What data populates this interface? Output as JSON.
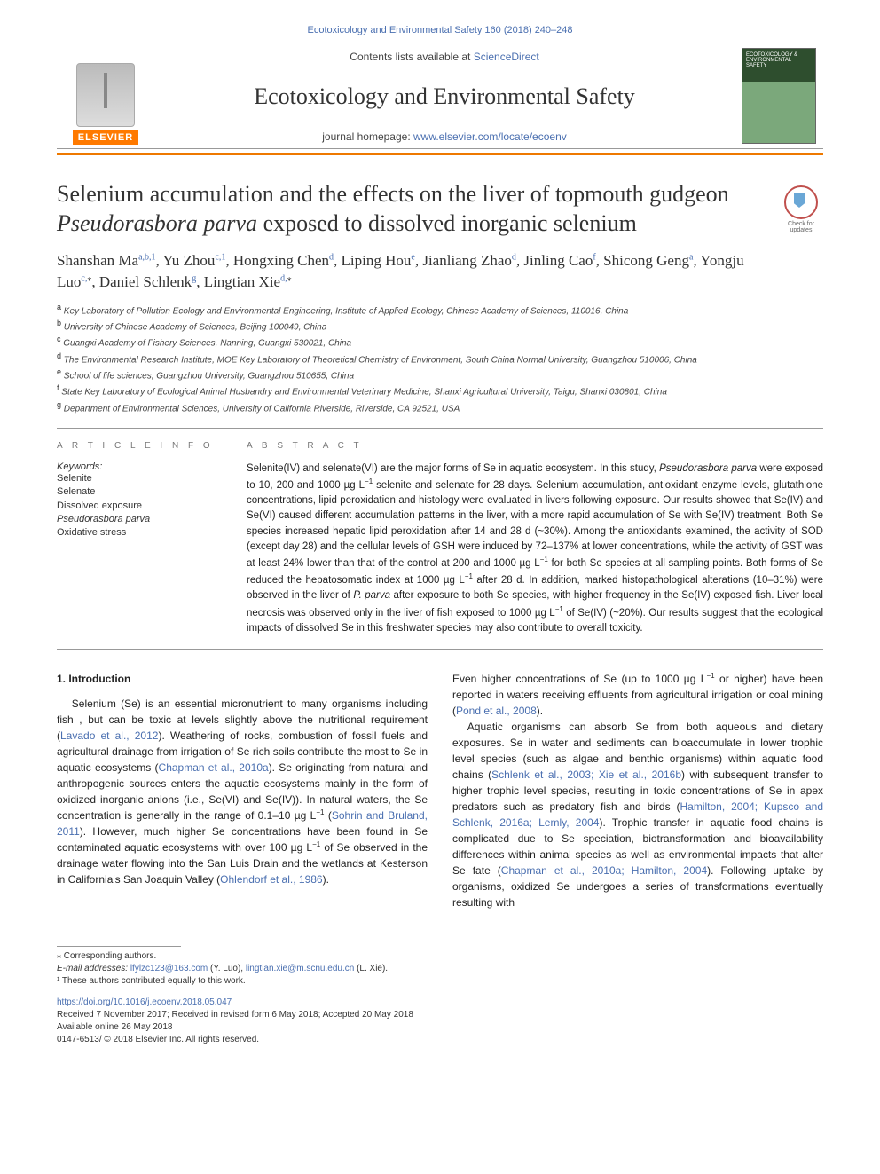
{
  "header": {
    "top_citation": "Ecotoxicology and Environmental Safety 160 (2018) 240–248",
    "contents_line_pre": "Contents lists available at ",
    "contents_line_link": "ScienceDirect",
    "journal_name": "Ecotoxicology and Environmental Safety",
    "homepage_pre": "journal homepage: ",
    "homepage_link": "www.elsevier.com/locate/ecoenv",
    "publisher_label": "ELSEVIER",
    "cover_text": "ECOTOXICOLOGY & ENVIRONMENTAL SAFETY",
    "check_updates": "Check for updates"
  },
  "colors": {
    "rule": "#ee7900",
    "link": "#4a6fb0",
    "publisher_bg": "#ff7a00"
  },
  "article": {
    "title_plain_pre": "Selenium accumulation and the effects on the liver of topmouth gudgeon ",
    "title_ital": "Pseudorasbora parva",
    "title_plain_post": " exposed to dissolved inorganic selenium",
    "authors_html": "Shanshan Ma<sup>a,b,1</sup>, Yu Zhou<sup>c,1</sup>, Hongxing Chen<sup>d</sup>, Liping Hou<sup>e</sup>, Jianliang Zhao<sup>d</sup>, Jinling Cao<sup>f</sup>, Shicong Geng<sup>a</sup>, Yongju Luo<sup>c,</sup><sup class=\"black\">⁎</sup>, Daniel Schlenk<sup>g</sup>, Lingtian Xie<sup>d,</sup><sup class=\"black\">⁎</sup>",
    "affiliations": [
      {
        "key": "a",
        "text": "Key Laboratory of Pollution Ecology and Environmental Engineering, Institute of Applied Ecology, Chinese Academy of Sciences, 110016, China"
      },
      {
        "key": "b",
        "text": "University of Chinese Academy of Sciences, Beijing 100049, China"
      },
      {
        "key": "c",
        "text": "Guangxi Academy of Fishery Sciences, Nanning, Guangxi 530021, China"
      },
      {
        "key": "d",
        "text": "The Environmental Research Institute, MOE Key Laboratory of Theoretical Chemistry of Environment, South China Normal University, Guangzhou 510006, China"
      },
      {
        "key": "e",
        "text": "School of life sciences, Guangzhou University, Guangzhou 510655, China"
      },
      {
        "key": "f",
        "text": "State Key Laboratory of Ecological Animal Husbandry and Environmental Veterinary Medicine, Shanxi Agricultural University, Taigu, Shanxi 030801, China"
      },
      {
        "key": "g",
        "text": "Department of Environmental Sciences, University of California Riverside, Riverside, CA 92521, USA"
      }
    ]
  },
  "article_info": {
    "head": "A R T I C L E  I N F O",
    "kw_label": "Keywords:",
    "keywords": [
      "Selenite",
      "Selenate",
      "Dissolved exposure",
      "Pseudorasbora parva",
      "Oxidative stress"
    ],
    "kw_italic_index": 3
  },
  "abstract": {
    "head": "A B S T R A C T",
    "text_html": "Selenite(IV) and selenate(VI) are the major forms of Se in aquatic ecosystem. In this study, <em>Pseudorasbora parva</em> were exposed to 10, 200 and 1000 µg L<sup>−1</sup> selenite and selenate for 28 days. Selenium accumulation, antioxidant enzyme levels, glutathione concentrations, lipid peroxidation and histology were evaluated in livers following exposure. Our results showed that Se(IV) and Se(VI) caused different accumulation patterns in the liver, with a more rapid accumulation of Se with Se(IV) treatment. Both Se species increased hepatic lipid peroxidation after 14 and 28 d (~30%). Among the antioxidants examined, the activity of SOD (except day 28) and the cellular levels of GSH were induced by 72–137% at lower concentrations, while the activity of GST was at least 24% lower than that of the control at 200 and 1000 µg L<sup>−1</sup> for both Se species at all sampling points. Both forms of Se reduced the hepatosomatic index at 1000 µg L<sup>−1</sup> after 28 d. In addition, marked histopathological alterations (10–31%) were observed in the liver of <em>P. parva</em> after exposure to both Se species, with higher frequency in the Se(IV) exposed fish. Liver local necrosis was observed only in the liver of fish exposed to 1000 µg L<sup>−1</sup> of Se(IV) (~20%). Our results suggest that the ecological impacts of dissolved Se in this freshwater species may also contribute to overall toxicity."
  },
  "body": {
    "section_heading": "1. Introduction",
    "col1_html": "Selenium (Se) is an essential micronutrient to many organisms including fish , but can be toxic at levels slightly above the nutritional requirement (<a class=\"ref\">Lavado et al., 2012</a>). Weathering of rocks, combustion of fossil fuels and agricultural drainage from irrigation of Se rich soils contribute the most to Se in aquatic ecosystems (<a class=\"ref\">Chapman et al., 2010a</a>). Se originating from natural and anthropogenic sources enters the aquatic ecosystems mainly in the form of oxidized inorganic anions (i.e., Se(VI) and Se(IV)). In natural waters, the Se concentration is generally in the range of 0.1–10 µg L<sup>−1</sup> (<a class=\"ref\">Sohrin and Bruland, 2011</a>). However, much higher Se concentrations have been found in Se contaminated aquatic ecosystems with over 100 µg L<sup>−1</sup> of Se observed in the drainage water flowing into the San Luis Drain and the wetlands at Kesterson in California's San Joaquin Valley (<a class=\"ref\">Ohlendorf et al., 1986</a>).",
    "col2_p1_html": "Even higher concentrations of Se (up to 1000 µg L<sup>−1</sup> or higher) have been reported in waters receiving effluents from agricultural irrigation or coal mining (<a class=\"ref\">Pond et al., 2008</a>).",
    "col2_p2_html": "Aquatic organisms can absorb Se from both aqueous and dietary exposures. Se in water and sediments can bioaccumulate in lower trophic level species (such as algae and benthic organisms) within aquatic food chains (<a class=\"ref\">Schlenk et al., 2003; Xie et al., 2016b</a>) with subsequent transfer to higher trophic level species, resulting in toxic concentrations of Se in apex predators such as predatory fish and birds (<a class=\"ref\">Hamilton, 2004; Kupsco and Schlenk, 2016a; Lemly, 2004</a>). Trophic transfer in aquatic food chains is complicated due to Se speciation, biotransformation and bioavailability differences within animal species as well as environmental impacts that alter Se fate (<a class=\"ref\">Chapman et al., 2010a; Hamilton, 2004</a>). Following uptake by organisms, oxidized Se undergoes a series of transformations eventually resulting with"
  },
  "footer": {
    "corr_label": "⁎ Corresponding authors.",
    "email_label": "E-mail addresses: ",
    "email1": "lfylzc123@163.com",
    "email1_who": " (Y. Luo), ",
    "email2": "lingtian.xie@m.scnu.edu.cn",
    "email2_who": " (L. Xie).",
    "note1": "¹ These authors contributed equally to this work.",
    "doi": "https://doi.org/10.1016/j.ecoenv.2018.05.047",
    "history": "Received 7 November 2017; Received in revised form 6 May 2018; Accepted 20 May 2018",
    "online": "Available online 26 May 2018",
    "copyright": "0147-6513/ © 2018 Elsevier Inc. All rights reserved."
  }
}
